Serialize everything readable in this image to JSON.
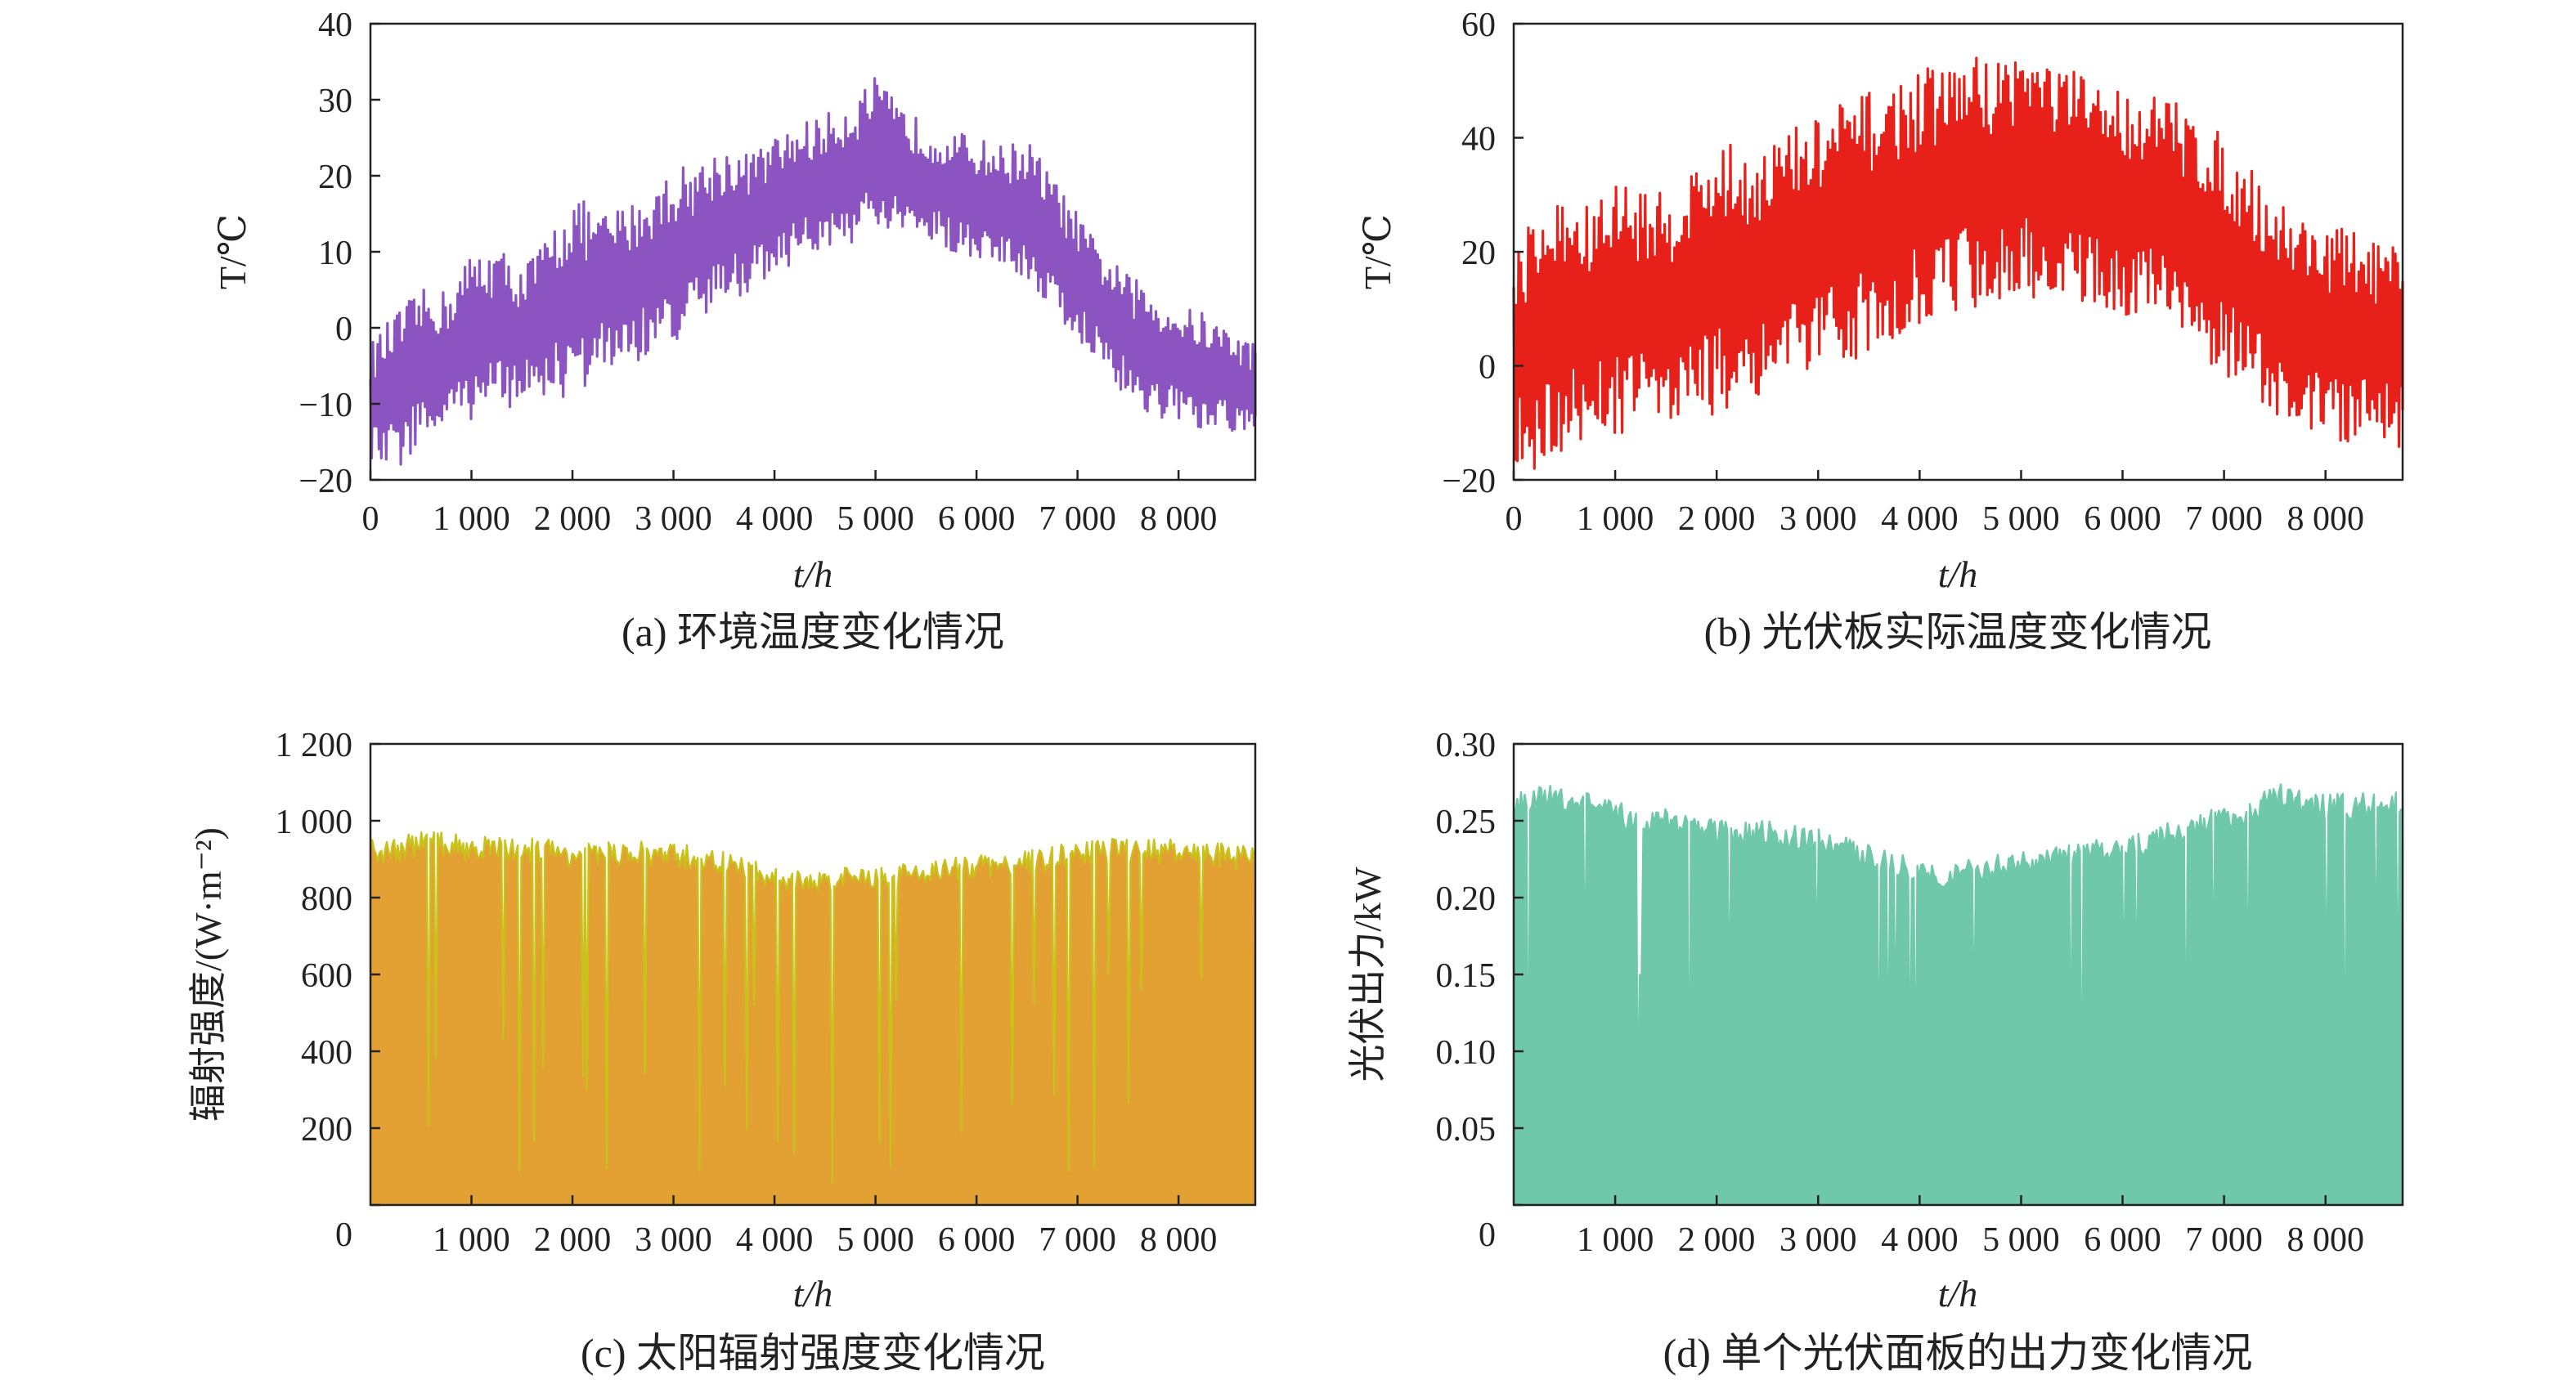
{
  "chart_data": [
    {
      "type": "line",
      "caption": "(a) 环境温度变化情况",
      "xlabel": "t/h",
      "ylabel": "T/℃",
      "xlim": [
        0,
        8760
      ],
      "ylim": [
        -20,
        40
      ],
      "x_ticks": [
        "0",
        "1 000",
        "2 000",
        "3 000",
        "4 000",
        "5 000",
        "6 000",
        "7 000",
        "8 000"
      ],
      "y_ticks": [
        "−20",
        "−10",
        "0",
        "10",
        "20",
        "30",
        "40"
      ],
      "color": "#8b54c0",
      "series": [
        {
          "x": [
            0,
            250,
            500,
            750,
            1000,
            1250,
            1500,
            1750,
            2000,
            2250,
            2500,
            2750,
            3000,
            3250,
            3500,
            3750,
            4000,
            4250,
            4500,
            4750,
            5000,
            5250,
            5500,
            5750,
            6000,
            6250,
            6500,
            6750,
            7000,
            7250,
            7500,
            7750,
            8000,
            8250,
            8500,
            8760
          ],
          "low": [
            -18,
            -19,
            -15,
            -14,
            -12,
            -11,
            -10,
            -9,
            -10,
            -6,
            -5,
            -4,
            -2,
            0,
            3,
            5,
            7,
            9,
            10,
            11,
            12,
            12,
            11,
            10,
            9,
            8,
            6,
            2,
            -2,
            -5,
            -10,
            -12,
            -13,
            -14,
            -14,
            -15
          ],
          "high": [
            -2,
            2,
            5,
            5,
            10,
            11,
            8,
            12,
            18,
            15,
            16,
            18,
            21,
            22,
            24,
            23,
            25,
            27,
            28,
            30,
            33,
            29,
            27,
            26,
            25,
            24,
            25,
            20,
            15,
            10,
            7,
            5,
            3,
            2,
            0,
            -2
          ]
        }
      ]
    },
    {
      "type": "line",
      "caption": "(b) 光伏板实际温度变化情况",
      "xlabel": "t/h",
      "ylabel": "T/℃",
      "xlim": [
        0,
        8760
      ],
      "ylim": [
        -20,
        60
      ],
      "x_ticks": [
        "0",
        "1 000",
        "2 000",
        "3 000",
        "4 000",
        "5 000",
        "6 000",
        "7 000",
        "8 000"
      ],
      "y_ticks": [
        "−20",
        "0",
        "20",
        "40",
        "60"
      ],
      "color": "#e8201a",
      "series": [
        {
          "x": [
            0,
            250,
            500,
            750,
            1000,
            1250,
            1500,
            1750,
            2000,
            2250,
            2500,
            2750,
            3000,
            3250,
            3500,
            3750,
            4000,
            4250,
            4500,
            4750,
            5000,
            5250,
            5500,
            5750,
            6000,
            6250,
            6500,
            6750,
            7000,
            7250,
            7500,
            7750,
            8000,
            8250,
            8500,
            8760
          ],
          "low": [
            -18,
            -19,
            -15,
            -13,
            -12,
            -11,
            -10,
            -8,
            -9,
            -6,
            -5,
            -3,
            -2,
            0,
            3,
            5,
            7,
            9,
            10,
            11,
            12,
            12,
            11,
            10,
            9,
            8,
            6,
            2,
            -2,
            -5,
            -10,
            -12,
            -13,
            -14,
            -14,
            -15
          ],
          "high": [
            22,
            28,
            30,
            28,
            33,
            32,
            30,
            35,
            40,
            38,
            40,
            42,
            44,
            47,
            48,
            50,
            52,
            53,
            55,
            54,
            57,
            54,
            52,
            50,
            49,
            48,
            47,
            44,
            40,
            35,
            30,
            27,
            25,
            24,
            22,
            20
          ]
        }
      ]
    },
    {
      "type": "area",
      "caption": "(c) 太阳辐射强度变化情况",
      "xlabel": "t/h",
      "ylabel": "辐射强度/(W·m⁻²)",
      "xlim": [
        0,
        8760
      ],
      "ylim": [
        0,
        1200
      ],
      "x_ticks": [
        "1 000",
        "2 000",
        "3 000",
        "4 000",
        "5 000",
        "6 000",
        "7 000",
        "8 000"
      ],
      "y_ticks": [
        "0",
        "200",
        "400",
        "600",
        "800",
        "1 000",
        "1 200"
      ],
      "color": "#e3a033",
      "edge_color": "#c8c21a",
      "series": [
        {
          "x": [
            0,
            250,
            500,
            750,
            1000,
            1250,
            1500,
            1750,
            2000,
            2250,
            2500,
            2750,
            3000,
            3250,
            3500,
            3750,
            4000,
            4250,
            4500,
            4750,
            5000,
            5250,
            5500,
            5750,
            6000,
            6250,
            6500,
            6750,
            7000,
            7250,
            7500,
            7750,
            8000,
            8250,
            8500,
            8760
          ],
          "values": [
            950,
            960,
            975,
            970,
            965,
            960,
            960,
            955,
            945,
            940,
            950,
            945,
            940,
            935,
            920,
            900,
            880,
            870,
            875,
            880,
            885,
            890,
            900,
            905,
            910,
            915,
            925,
            935,
            945,
            955,
            960,
            955,
            950,
            945,
            940,
            935
          ]
        }
      ]
    },
    {
      "type": "area",
      "caption": "(d) 单个光伏面板的出力变化情况",
      "xlabel": "t/h",
      "ylabel": "光伏出力/kW",
      "xlim": [
        0,
        8760
      ],
      "ylim": [
        0,
        0.3
      ],
      "x_ticks": [
        "1 000",
        "2 000",
        "3 000",
        "4 000",
        "5 000",
        "6 000",
        "7 000",
        "8 000"
      ],
      "y_ticks": [
        "0",
        "0.05",
        "0.10",
        "0.15",
        "0.20",
        "0.25",
        "0.30"
      ],
      "color": "#6fc8a9",
      "series": [
        {
          "x": [
            0,
            250,
            500,
            750,
            1000,
            1250,
            1500,
            1750,
            2000,
            2250,
            2500,
            2750,
            3000,
            3250,
            3500,
            3750,
            4000,
            4250,
            4500,
            4750,
            5000,
            5250,
            5500,
            5750,
            6000,
            6250,
            6500,
            6750,
            7000,
            7250,
            7500,
            7750,
            8000,
            8250,
            8500,
            8760
          ],
          "values": [
            0.27,
            0.272,
            0.275,
            0.27,
            0.262,
            0.26,
            0.258,
            0.255,
            0.252,
            0.25,
            0.25,
            0.247,
            0.245,
            0.24,
            0.235,
            0.23,
            0.225,
            0.222,
            0.225,
            0.228,
            0.23,
            0.232,
            0.235,
            0.238,
            0.24,
            0.245,
            0.25,
            0.255,
            0.26,
            0.265,
            0.275,
            0.27,
            0.268,
            0.27,
            0.268,
            0.27
          ]
        }
      ]
    }
  ]
}
